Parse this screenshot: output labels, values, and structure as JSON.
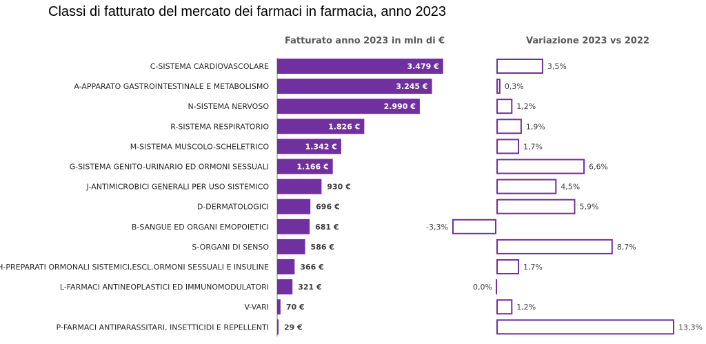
{
  "title": "Classi di fatturato del mercato dei farmaci in farmacia, anno 2023",
  "left_header": "Fatturato anno 2023 in mln di €",
  "right_header": "Variazione 2023 vs 2022",
  "colors": {
    "bar_fill": "#7030a0",
    "outline": "#7030a0",
    "axis": "#808080"
  },
  "chart_data": [
    {
      "type": "bar",
      "orientation": "horizontal",
      "title": "Fatturato anno 2023 in mln di €",
      "categories": [
        "C-SISTEMA CARDIOVASCOLARE",
        "A-APPARATO GASTROINTESTINALE E METABOLISMO",
        "N-SISTEMA NERVOSO",
        "R-SISTEMA RESPIRATORIO",
        "M-SISTEMA MUSCOLO-SCHELETRICO",
        "G-SISTEMA GENITO-URINARIO ED ORMONI SESSUALI",
        "J-ANTIMICROBICI GENERALI PER USO SISTEMICO",
        "D-DERMATOLOGICI",
        "B-SANGUE ED ORGANI EMOPOIETICI",
        "S-ORGANI DI SENSO",
        "H-PREPARATI ORMONALI SISTEMICI,ESCL.ORMONI SESSUALI E INSULINE",
        "L-FARMACI ANTINEOPLASTICI ED IMMUNOMODULATORI",
        "V-VARI",
        "P-FARMACI ANTIPARASSITARI, INSETTICIDI E REPELLENTI"
      ],
      "values": [
        3479,
        3245,
        2990,
        1826,
        1342,
        1166,
        930,
        696,
        681,
        586,
        366,
        321,
        70,
        29
      ],
      "value_labels": [
        "3.479 €",
        "3.245 €",
        "2.990 €",
        "1.826 €",
        "1.342 €",
        "1.166 €",
        "930 €",
        "696 €",
        "681 €",
        "586 €",
        "366 €",
        "321 €",
        "70 €",
        "29 €"
      ]
    },
    {
      "type": "bar",
      "orientation": "horizontal",
      "title": "Variazione 2023 vs 2022",
      "categories": [
        "C-SISTEMA CARDIOVASCOLARE",
        "A-APPARATO GASTROINTESTINALE E METABOLISMO",
        "N-SISTEMA NERVOSO",
        "R-SISTEMA RESPIRATORIO",
        "M-SISTEMA MUSCOLO-SCHELETRICO",
        "G-SISTEMA GENITO-URINARIO ED ORMONI SESSUALI",
        "J-ANTIMICROBICI GENERALI PER USO SISTEMICO",
        "D-DERMATOLOGICI",
        "B-SANGUE ED ORGANI EMOPOIETICI",
        "S-ORGANI DI SENSO",
        "H-PREPARATI ORMONALI SISTEMICI,ESCL.ORMONI SESSUALI E INSULINE",
        "L-FARMACI ANTINEOPLASTICI ED IMMUNOMODULATORI",
        "V-VARI",
        "P-FARMACI ANTIPARASSITARI, INSETTICIDI E REPELLENTI"
      ],
      "values": [
        3.5,
        0.3,
        1.2,
        1.9,
        1.7,
        6.6,
        4.5,
        5.9,
        -3.3,
        8.7,
        1.7,
        0.0,
        1.2,
        13.3
      ],
      "value_labels": [
        "3,5%",
        "0,3%",
        "1,2%",
        "1,9%",
        "1,7%",
        "6,6%",
        "4,5%",
        "5,9%",
        "-3,3%",
        "8,7%",
        "1,7%",
        "0,0%",
        "1,2%",
        "13,3%"
      ]
    }
  ]
}
